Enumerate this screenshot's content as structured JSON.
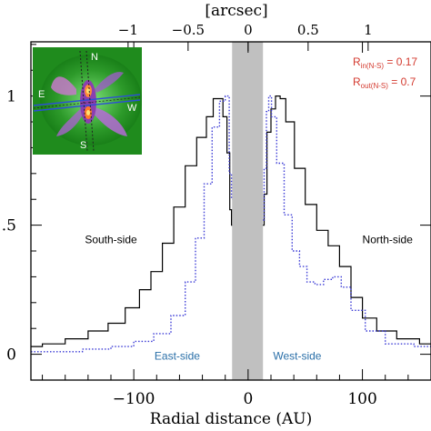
{
  "chart_data": {
    "type": "line",
    "xlabel": "Radial distance (AU)",
    "top_axis_label": "[arcsec]",
    "xlim": [
      -190,
      160
    ],
    "ylim": [
      -0.1,
      1.21
    ],
    "x_ticks": [
      {
        "value": -100,
        "label": "−100"
      },
      {
        "value": 0,
        "label": "0"
      },
      {
        "value": 100,
        "label": "100"
      }
    ],
    "y_ticks": [
      {
        "value": 0,
        "label": "0"
      },
      {
        "value": 0.5,
        "label": ".5"
      },
      {
        "value": 1,
        "label": "1"
      }
    ],
    "top_ticks": [
      {
        "value": -1,
        "label": "−1"
      },
      {
        "value": -0.5,
        "label": "−0.5"
      },
      {
        "value": 0,
        "label": "0"
      },
      {
        "value": 0.5,
        "label": "0.5"
      },
      {
        "value": 1,
        "label": "1"
      }
    ],
    "au_per_arcsec": 105,
    "shaded_region": [
      -14,
      13
    ],
    "series": [
      {
        "style": "solid",
        "color": "#000000",
        "points": [
          [
            -190,
            0.03
          ],
          [
            -170,
            0.04
          ],
          [
            -150,
            0.06
          ],
          [
            -130,
            0.09
          ],
          [
            -115,
            0.12
          ],
          [
            -100,
            0.18
          ],
          [
            -90,
            0.25
          ],
          [
            -80,
            0.32
          ],
          [
            -70,
            0.43
          ],
          [
            -60,
            0.57
          ],
          [
            -50,
            0.73
          ],
          [
            -40,
            0.84
          ],
          [
            -33,
            0.92
          ],
          [
            -28,
            0.99
          ],
          [
            -24,
            0.99
          ],
          [
            -20,
            0.92
          ],
          [
            -17,
            0.78
          ],
          [
            -15,
            0.56
          ],
          [
            -14,
            0.5
          ]
        ]
      },
      {
        "style": "solid",
        "color": "#000000",
        "points": [
          [
            13,
            0.5
          ],
          [
            15,
            0.62
          ],
          [
            18,
            0.86
          ],
          [
            22,
            0.95
          ],
          [
            26,
            1.0
          ],
          [
            30,
            0.99
          ],
          [
            36,
            0.9
          ],
          [
            45,
            0.72
          ],
          [
            55,
            0.58
          ],
          [
            65,
            0.48
          ],
          [
            75,
            0.42
          ],
          [
            85,
            0.34
          ],
          [
            95,
            0.22
          ],
          [
            105,
            0.14
          ],
          [
            120,
            0.09
          ],
          [
            140,
            0.06
          ],
          [
            160,
            0.04
          ]
        ]
      },
      {
        "style": "dotted",
        "color": "#3b3bd6",
        "points": [
          [
            -190,
            0.01
          ],
          [
            -160,
            0.01
          ],
          [
            -130,
            0.02
          ],
          [
            -110,
            0.03
          ],
          [
            -90,
            0.05
          ],
          [
            -75,
            0.08
          ],
          [
            -60,
            0.15
          ],
          [
            -50,
            0.28
          ],
          [
            -42,
            0.45
          ],
          [
            -35,
            0.66
          ],
          [
            -28,
            0.88
          ],
          [
            -22,
            0.98
          ],
          [
            -18,
            1.0
          ],
          [
            -15,
            0.7
          ],
          [
            -14,
            0.6
          ]
        ]
      },
      {
        "style": "dotted",
        "color": "#3b3bd6",
        "points": [
          [
            13,
            0.52
          ],
          [
            15,
            0.72
          ],
          [
            17,
            0.94
          ],
          [
            19,
            1.0
          ],
          [
            22,
            0.92
          ],
          [
            28,
            0.74
          ],
          [
            35,
            0.54
          ],
          [
            42,
            0.4
          ],
          [
            48,
            0.34
          ],
          [
            55,
            0.28
          ],
          [
            62,
            0.27
          ],
          [
            70,
            0.29
          ],
          [
            78,
            0.3
          ],
          [
            85,
            0.26
          ],
          [
            95,
            0.17
          ],
          [
            110,
            0.09
          ],
          [
            130,
            0.04
          ],
          [
            160,
            0.03
          ]
        ]
      }
    ],
    "annotations": [
      {
        "text": "South-side",
        "color": "#000000",
        "x": -120,
        "y": 0.43
      },
      {
        "text": "North-side",
        "color": "#000000",
        "x": 122,
        "y": 0.43
      },
      {
        "text": "East-side",
        "color": "#2a6fa8",
        "x": -62,
        "y": -0.02
      },
      {
        "text": "West-side",
        "color": "#2a6fa8",
        "x": 43,
        "y": -0.02
      }
    ],
    "legend_text": {
      "color": "#d43a2f",
      "line1_main": "R",
      "line1_sub": "in(N-S)",
      "line1_value": " = 0.17",
      "line2_main": "R",
      "line2_sub": "out(N-S)",
      "line2_value": " = 0.7"
    },
    "inset": {
      "labels": [
        {
          "text": "N"
        },
        {
          "text": "E"
        },
        {
          "text": "W"
        },
        {
          "text": "S"
        }
      ]
    }
  }
}
